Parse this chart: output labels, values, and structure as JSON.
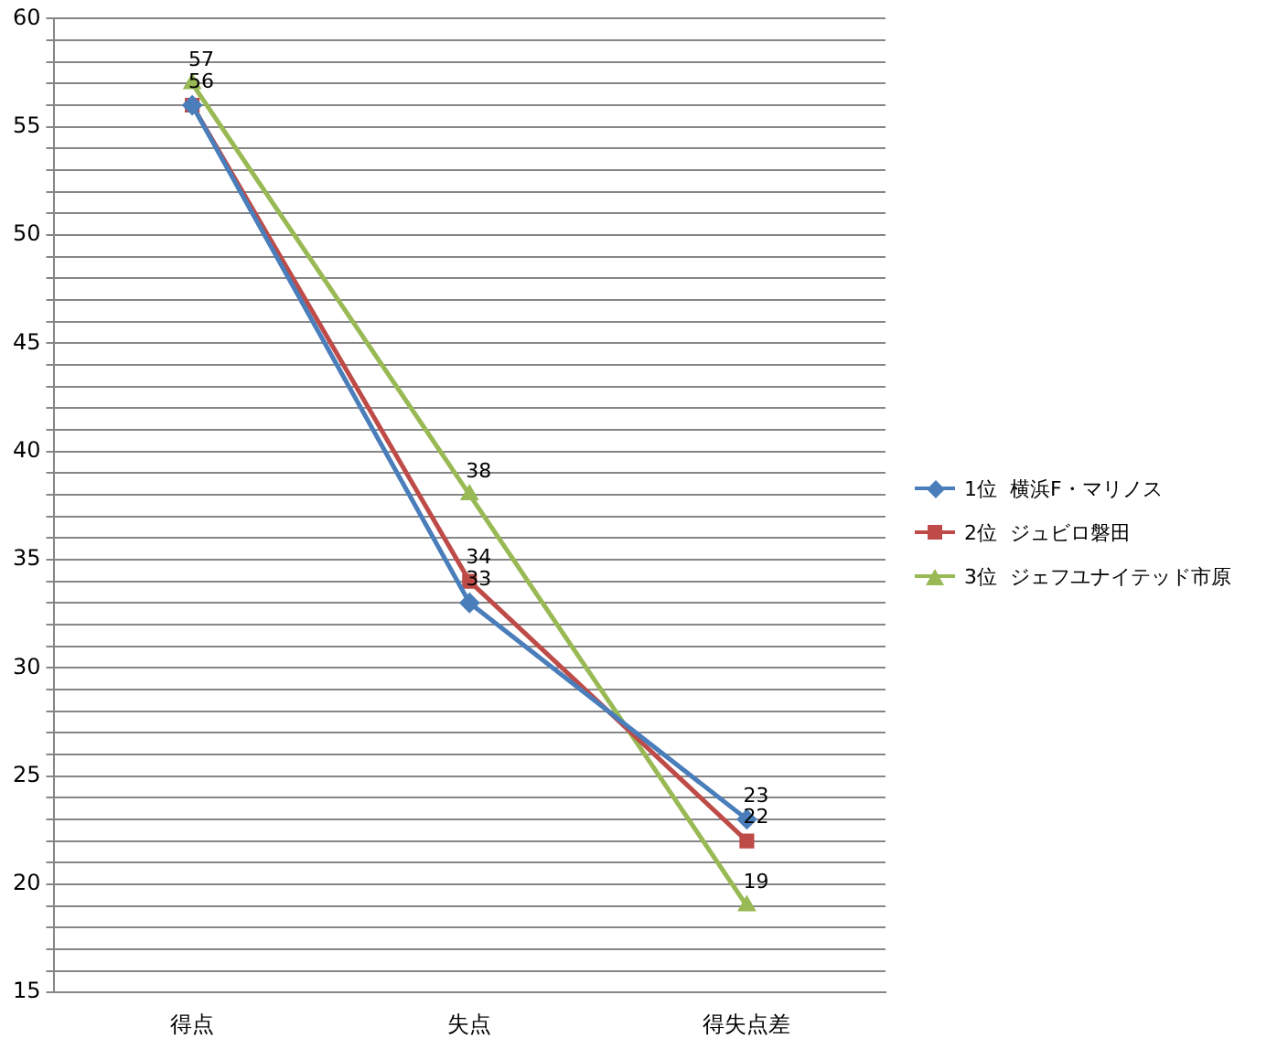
{
  "chart_data": {
    "type": "line",
    "categories": [
      "得点",
      "失点",
      "得失点差"
    ],
    "series": [
      {
        "name": "1位  横浜F・マリノス",
        "color": "#4a7ebb",
        "values": [
          56,
          33,
          23
        ],
        "value_labels": [
          null,
          "33",
          "23"
        ],
        "marker": "diamond"
      },
      {
        "name": "2位  ジュビロ磐田",
        "color": "#be4b48",
        "values": [
          56,
          34,
          22
        ],
        "value_labels": [
          "56",
          "34",
          "22"
        ],
        "marker": "square"
      },
      {
        "name": "3位  ジェフユナイテッド市原",
        "color": "#98b954",
        "values": [
          57,
          38,
          19
        ],
        "value_labels": [
          "57",
          "38",
          "19"
        ],
        "marker": "triangle"
      }
    ],
    "ylim": [
      15,
      60
    ],
    "yticks": [
      15,
      {
        "value": 16,
        "label": null
      },
      {
        "value": 17,
        "label": null
      },
      {
        "value": 18,
        "label": null
      },
      {
        "value": 19,
        "label": null
      },
      20,
      {
        "value": 21,
        "label": null
      },
      {
        "value": 22,
        "label": null
      },
      {
        "value": 23,
        "label": null
      },
      {
        "value": 24,
        "label": null
      },
      25,
      {
        "value": 26,
        "label": null
      },
      {
        "value": 27,
        "label": null
      },
      {
        "value": 28,
        "label": null
      },
      {
        "value": 29,
        "label": null
      },
      30,
      {
        "value": 31,
        "label": null
      },
      {
        "value": 32,
        "label": null
      },
      {
        "value": 33,
        "label": null
      },
      {
        "value": 34,
        "label": null
      },
      35,
      {
        "value": 36,
        "label": null
      },
      {
        "value": 37,
        "label": null
      },
      {
        "value": 38,
        "label": null
      },
      {
        "value": 39,
        "label": null
      },
      40,
      {
        "value": 41,
        "label": null
      },
      {
        "value": 42,
        "label": null
      },
      {
        "value": 43,
        "label": null
      },
      {
        "value": 44,
        "label": null
      },
      45,
      {
        "value": 46,
        "label": null
      },
      {
        "value": 47,
        "label": null
      },
      {
        "value": 48,
        "label": null
      },
      {
        "value": 49,
        "label": null
      },
      50,
      {
        "value": 51,
        "label": null
      },
      {
        "value": 52,
        "label": null
      },
      {
        "value": 53,
        "label": null
      },
      {
        "value": 54,
        "label": null
      },
      55,
      {
        "value": 56,
        "label": null
      },
      {
        "value": 57,
        "label": null
      },
      {
        "value": 58,
        "label": null
      },
      {
        "value": 59,
        "label": null
      },
      60
    ],
    "grid": "y",
    "legend": "right",
    "line_style": "solid"
  }
}
